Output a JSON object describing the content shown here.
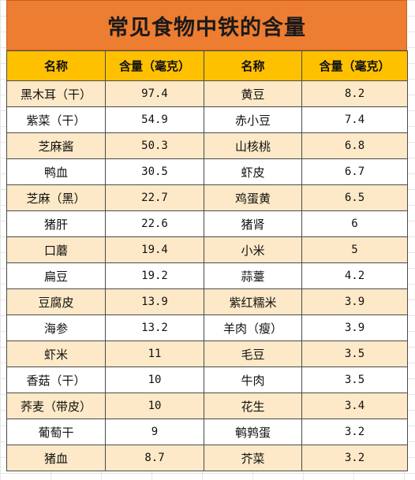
{
  "title": "常见食物中铁的含量",
  "headers": [
    "名称",
    "含量（毫克）",
    "名称",
    "含量（毫克）"
  ],
  "rows": [
    {
      "name1": "黑木耳（干）",
      "val1": "97.4",
      "name2": "黄豆",
      "val2": "8.2"
    },
    {
      "name1": "紫菜（干）",
      "val1": "54.9",
      "name2": "赤小豆",
      "val2": "7.4"
    },
    {
      "name1": "芝麻酱",
      "val1": "50.3",
      "name2": "山核桃",
      "val2": "6.8"
    },
    {
      "name1": "鸭血",
      "val1": "30.5",
      "name2": "虾皮",
      "val2": "6.7"
    },
    {
      "name1": "芝麻（黑）",
      "val1": "22.7",
      "name2": "鸡蛋黄",
      "val2": "6.5"
    },
    {
      "name1": "猪肝",
      "val1": "22.6",
      "name2": "猪肾",
      "val2": "6"
    },
    {
      "name1": "口蘑",
      "val1": "19.4",
      "name2": "小米",
      "val2": "5"
    },
    {
      "name1": "扁豆",
      "val1": "19.2",
      "name2": "蒜薹",
      "val2": "4.2"
    },
    {
      "name1": "豆腐皮",
      "val1": "13.9",
      "name2": "紫红糯米",
      "val2": "3.9"
    },
    {
      "name1": "海参",
      "val1": "13.2",
      "name2": "羊肉（瘦）",
      "val2": "3.9"
    },
    {
      "name1": "虾米",
      "val1": "11",
      "name2": "毛豆",
      "val2": "3.5"
    },
    {
      "name1": "香菇（干）",
      "val1": "10",
      "name2": "牛肉",
      "val2": "3.5"
    },
    {
      "name1": "荞麦（带皮）",
      "val1": "10",
      "name2": "花生",
      "val2": "3.4"
    },
    {
      "name1": "葡萄干",
      "val1": "9",
      "name2": "鹌鹑蛋",
      "val2": "3.2"
    },
    {
      "name1": "猪血",
      "val1": "8.7",
      "name2": "芥菜",
      "val2": "3.2"
    }
  ],
  "colors": {
    "title_bg": "#ed7d31",
    "header_bg": "#ffc000",
    "band_bg": "#fde9c7"
  }
}
